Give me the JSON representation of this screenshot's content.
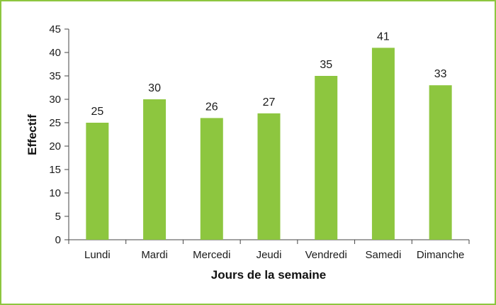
{
  "chart_data": {
    "type": "bar",
    "categories": [
      "Lundi",
      "Mardi",
      "Mercedi",
      "Jeudi",
      "Vendredi",
      "Samedi",
      "Dimanche"
    ],
    "values": [
      25,
      30,
      26,
      27,
      35,
      41,
      33
    ],
    "title": "",
    "xlabel": "Jours de la semaine",
    "ylabel": "Effectif",
    "ylim": [
      0,
      45
    ],
    "yticks": [
      0,
      5,
      10,
      15,
      20,
      25,
      30,
      35,
      40,
      45
    ],
    "grid": false,
    "legend": "none",
    "data_labels": true,
    "bar_color": "#8dc63f",
    "frame_color": "#8dc63f"
  }
}
